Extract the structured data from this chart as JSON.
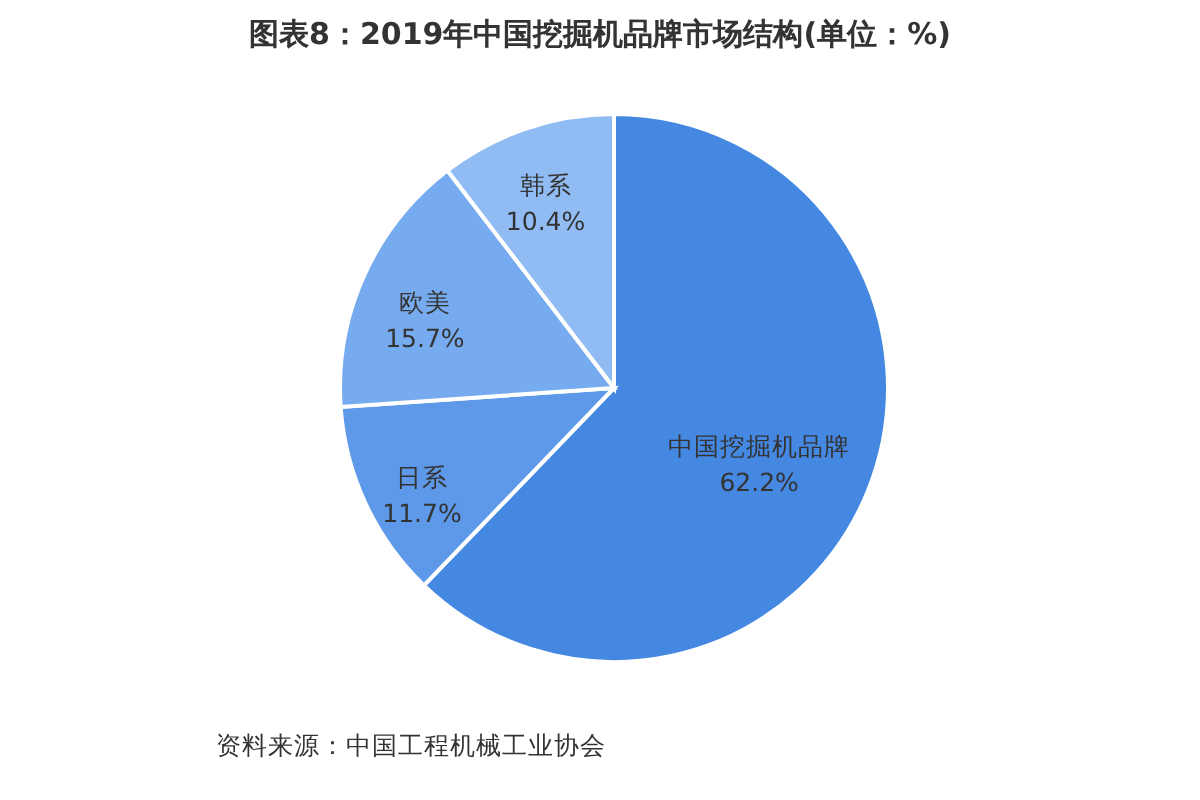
{
  "chart_data": {
    "type": "pie",
    "title": "图表8：2019年中国挖掘机品牌市场结构(单位：%)",
    "categories": [
      "中国挖掘机品牌",
      "日系",
      "欧美",
      "韩系"
    ],
    "values": [
      62.2,
      11.7,
      15.7,
      10.4
    ],
    "colors": [
      "#4488e2",
      "#5d99e8",
      "#77abef",
      "#90bcf3"
    ],
    "value_labels": [
      "62.2%",
      "11.7%",
      "15.7%",
      "10.4%"
    ],
    "legend": false,
    "annotations": [
      "资料来源：中国工程机械工业协会"
    ]
  }
}
